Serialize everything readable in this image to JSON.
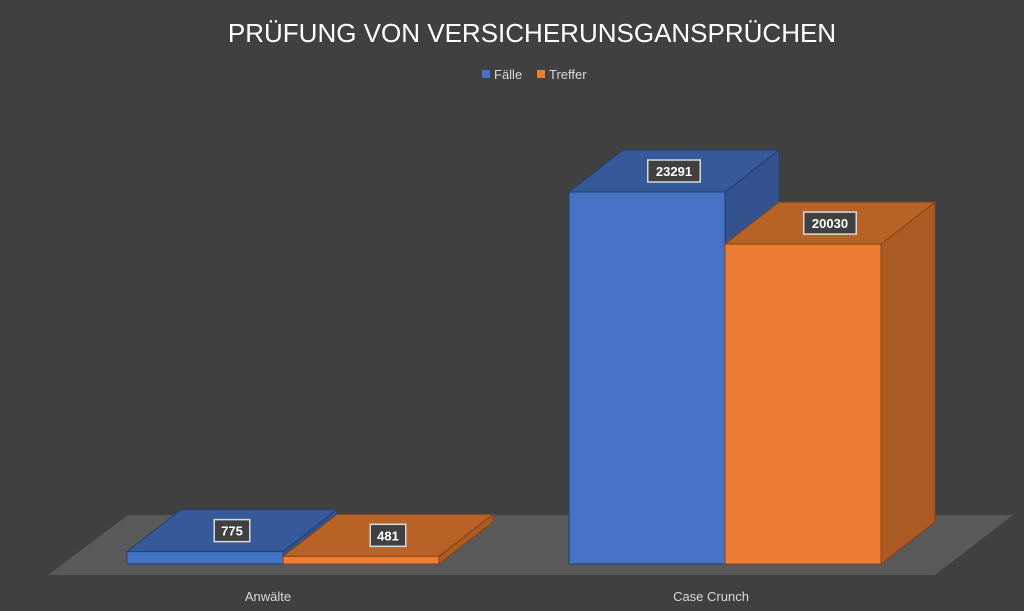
{
  "chart_data": {
    "type": "bar",
    "title": "PRÜFUNG VON VERSICHERUNSGANSPRÜCHEN",
    "categories": [
      "Anwälte",
      "Case Crunch"
    ],
    "series": [
      {
        "name": "Fälle",
        "values": [
          775,
          23291
        ],
        "color": "#4472C4"
      },
      {
        "name": "Treffer",
        "values": [
          481,
          20030
        ],
        "color": "#ED7D31"
      }
    ],
    "legend_position": "top",
    "grid": false,
    "style": "3d-column",
    "background": "#404040",
    "floor_color": "#595959"
  }
}
